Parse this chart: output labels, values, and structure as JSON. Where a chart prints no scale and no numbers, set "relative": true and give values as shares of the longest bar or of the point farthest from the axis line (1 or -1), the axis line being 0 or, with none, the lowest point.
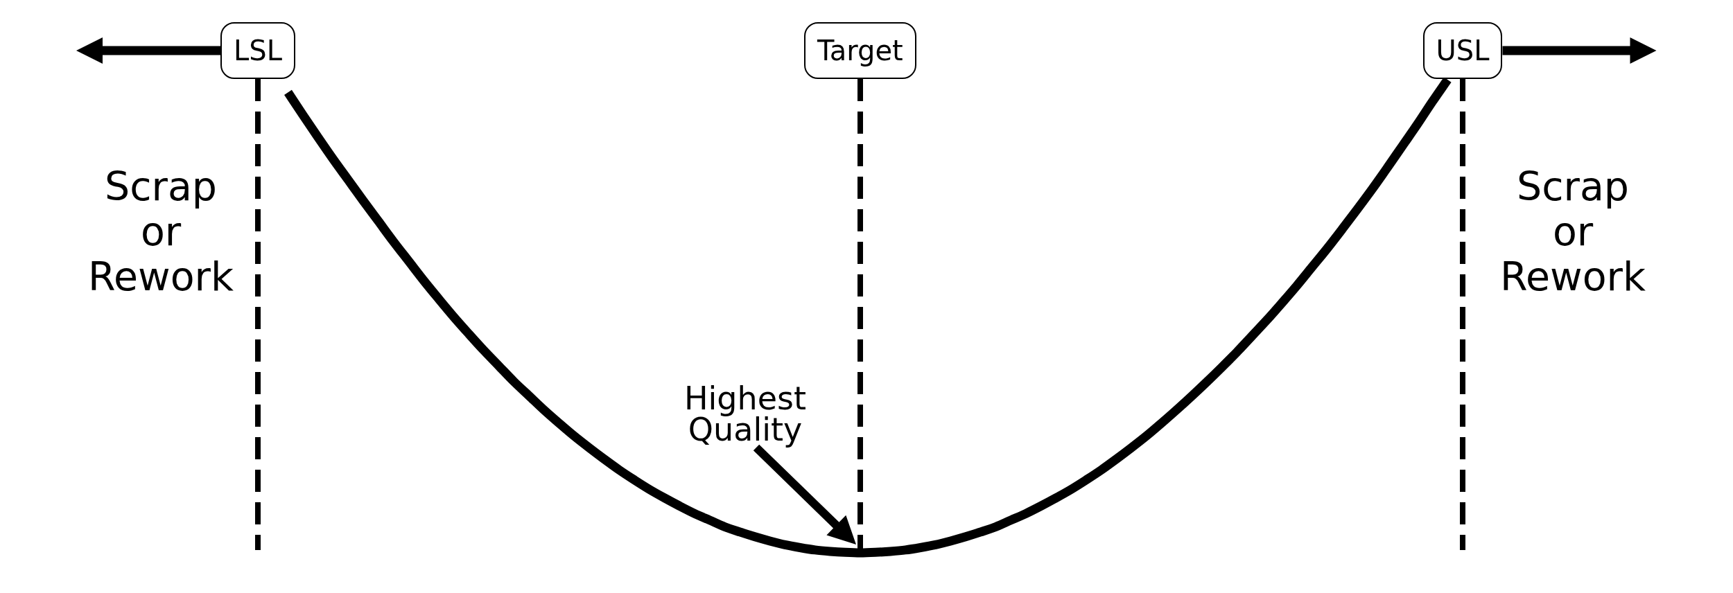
{
  "chart_data": {
    "type": "line",
    "relative": true,
    "categories": [
      "LSL",
      null,
      null,
      null,
      null,
      null,
      null,
      null,
      null,
      null,
      null,
      null,
      null,
      null,
      null,
      null,
      null,
      null,
      null,
      null,
      null,
      null,
      null,
      null,
      null,
      null,
      null,
      null,
      null,
      null,
      null,
      null,
      null,
      null,
      null,
      null,
      null,
      null,
      null,
      null,
      "Target",
      null,
      null,
      null,
      null,
      null,
      null,
      null,
      null,
      null,
      null,
      null,
      null,
      null,
      null,
      null,
      null,
      null,
      null,
      null,
      null,
      null,
      null,
      null,
      null,
      null,
      null,
      null,
      null,
      null,
      null,
      null,
      null,
      null,
      null,
      null,
      null,
      null,
      null,
      null,
      "USL"
    ],
    "values": [
      null,
      null,
      0.973,
      0.925,
      0.878,
      0.832,
      0.788,
      0.744,
      0.701,
      0.658,
      0.617,
      0.576,
      0.537,
      0.499,
      0.463,
      0.428,
      0.395,
      0.362,
      0.332,
      0.302,
      0.274,
      0.247,
      0.222,
      0.198,
      0.175,
      0.154,
      0.134,
      0.116,
      0.099,
      0.083,
      0.069,
      0.055,
      0.044,
      0.034,
      0.025,
      0.017,
      0.011,
      0.006,
      0.003,
      0.001,
      0,
      0.001,
      0.003,
      0.006,
      0.011,
      0.017,
      0.025,
      0.034,
      0.044,
      0.055,
      0.069,
      0.083,
      0.099,
      0.116,
      0.134,
      0.154,
      0.175,
      0.198,
      0.222,
      0.247,
      0.274,
      0.302,
      0.331,
      0.361,
      0.392,
      0.424,
      0.458,
      0.492,
      0.528,
      0.565,
      0.604,
      0.643,
      0.684,
      0.726,
      0.769,
      0.814,
      0.86,
      0.906,
      0.954,
      1,
      null
    ],
    "color": "#000000",
    "ref_lines": [
      {
        "axis": "x",
        "value": "LSL",
        "color": "#000000",
        "line_style": "dashed"
      },
      {
        "axis": "x",
        "value": "Target",
        "color": "#000000",
        "line_style": "dashed"
      },
      {
        "axis": "x",
        "value": "USL",
        "color": "#000000",
        "line_style": "dashed"
      }
    ],
    "annotations": [
      "Scrap\nor\nRework",
      "Scrap\nor\nRework",
      "Highest\nQuality"
    ],
    "marker": "none",
    "line_style": "solid",
    "tick_labels": "x"
  }
}
